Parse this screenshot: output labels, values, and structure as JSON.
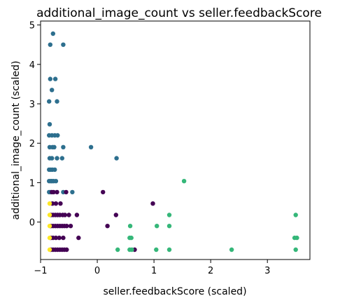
{
  "chart_data": {
    "type": "scatter",
    "title": "additional_image_count vs seller.feedbackScore",
    "xlabel": "seller.feedbackScore (scaled)",
    "ylabel": "additional_image_count (scaled)",
    "xlim": [
      -1.0,
      3.75
    ],
    "ylim": [
      -0.95,
      5.1
    ],
    "xticks": [
      -1,
      0,
      1,
      2,
      3
    ],
    "yticks": [
      0,
      1,
      2,
      3,
      4,
      5
    ],
    "grid": false,
    "legend": "none",
    "series": [
      {
        "color": "#2d6f8e",
        "points": [
          [
            -0.78,
            4.78
          ],
          [
            -0.83,
            4.5
          ],
          [
            -0.6,
            4.5
          ],
          [
            -0.83,
            3.63
          ],
          [
            -0.74,
            3.63
          ],
          [
            -0.8,
            3.35
          ],
          [
            -0.85,
            3.06
          ],
          [
            -0.71,
            3.06
          ],
          [
            -0.84,
            2.48
          ],
          [
            -0.85,
            2.2
          ],
          [
            -0.8,
            2.2
          ],
          [
            -0.75,
            2.2
          ],
          [
            -0.7,
            2.2
          ],
          [
            -0.84,
            1.9
          ],
          [
            -0.79,
            1.9
          ],
          [
            -0.76,
            1.9
          ],
          [
            -0.6,
            1.9
          ],
          [
            -0.11,
            1.9
          ],
          [
            -0.84,
            1.62
          ],
          [
            -0.8,
            1.62
          ],
          [
            -0.71,
            1.62
          ],
          [
            -0.62,
            1.62
          ],
          [
            0.34,
            1.62
          ],
          [
            -0.85,
            1.33
          ],
          [
            -0.82,
            1.33
          ],
          [
            -0.79,
            1.33
          ],
          [
            -0.75,
            1.33
          ],
          [
            -0.85,
            1.04
          ],
          [
            -0.82,
            1.04
          ],
          [
            -0.8,
            1.04
          ],
          [
            -0.77,
            1.04
          ],
          [
            -0.73,
            1.04
          ],
          [
            -0.85,
            0.76
          ],
          [
            -0.82,
            0.76
          ],
          [
            -0.6,
            0.76
          ],
          [
            -0.44,
            0.76
          ]
        ]
      },
      {
        "color": "#440154",
        "points": [
          [
            -0.8,
            0.76
          ],
          [
            -0.77,
            0.76
          ],
          [
            -0.71,
            0.76
          ],
          [
            -0.55,
            0.76
          ],
          [
            0.1,
            0.76
          ],
          [
            -0.79,
            0.47
          ],
          [
            -0.73,
            0.47
          ],
          [
            -0.65,
            0.47
          ],
          [
            0.98,
            0.47
          ],
          [
            -0.82,
            0.18
          ],
          [
            -0.78,
            0.18
          ],
          [
            -0.74,
            0.18
          ],
          [
            -0.7,
            0.18
          ],
          [
            -0.66,
            0.18
          ],
          [
            -0.61,
            0.18
          ],
          [
            -0.57,
            0.18
          ],
          [
            -0.5,
            0.18
          ],
          [
            -0.36,
            0.18
          ],
          [
            0.33,
            0.18
          ],
          [
            -0.82,
            -0.1
          ],
          [
            -0.78,
            -0.1
          ],
          [
            -0.74,
            -0.1
          ],
          [
            -0.7,
            -0.1
          ],
          [
            -0.66,
            -0.1
          ],
          [
            -0.62,
            -0.1
          ],
          [
            -0.58,
            -0.1
          ],
          [
            -0.54,
            -0.1
          ],
          [
            -0.47,
            -0.1
          ],
          [
            0.18,
            -0.1
          ],
          [
            -0.82,
            -0.4
          ],
          [
            -0.78,
            -0.4
          ],
          [
            -0.73,
            -0.4
          ],
          [
            -0.67,
            -0.4
          ],
          [
            -0.6,
            -0.4
          ],
          [
            -0.33,
            -0.4
          ],
          [
            -0.82,
            -0.7
          ],
          [
            -0.78,
            -0.7
          ],
          [
            -0.74,
            -0.7
          ],
          [
            -0.7,
            -0.7
          ],
          [
            -0.66,
            -0.7
          ],
          [
            -0.62,
            -0.7
          ],
          [
            -0.58,
            -0.7
          ],
          [
            -0.54,
            -0.7
          ],
          [
            0.66,
            -0.7
          ]
        ]
      },
      {
        "color": "#35b779",
        "points": [
          [
            1.53,
            1.04
          ],
          [
            1.27,
            0.18
          ],
          [
            3.5,
            0.18
          ],
          [
            0.58,
            -0.1
          ],
          [
            1.05,
            -0.1
          ],
          [
            1.27,
            -0.1
          ],
          [
            0.57,
            -0.4
          ],
          [
            0.6,
            -0.4
          ],
          [
            3.48,
            -0.4
          ],
          [
            3.52,
            -0.4
          ],
          [
            0.36,
            -0.7
          ],
          [
            0.57,
            -0.7
          ],
          [
            0.61,
            -0.7
          ],
          [
            1.04,
            -0.7
          ],
          [
            1.27,
            -0.7
          ],
          [
            2.37,
            -0.7
          ],
          [
            3.5,
            -0.7
          ]
        ]
      },
      {
        "color": "#fde725",
        "points": [
          [
            -0.84,
            0.47
          ],
          [
            -0.84,
            0.18
          ],
          [
            -0.84,
            -0.1
          ],
          [
            -0.84,
            -0.4
          ],
          [
            -0.84,
            -0.7
          ]
        ]
      }
    ]
  }
}
